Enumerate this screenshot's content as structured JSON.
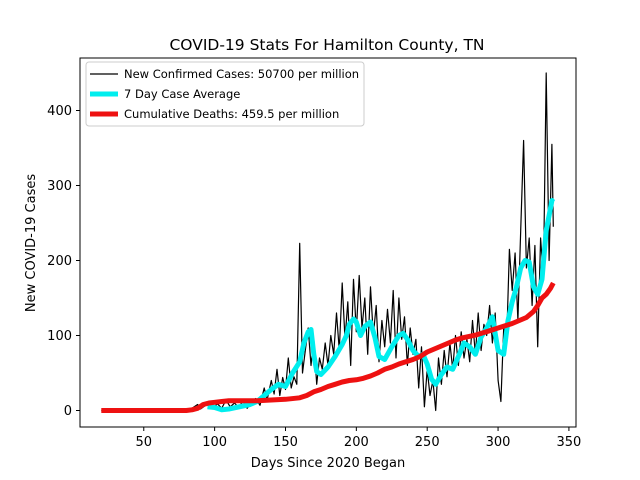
{
  "chart_data": {
    "type": "line",
    "title": "COVID-19 Stats For Hamilton County, TN",
    "xlabel": "Days Since 2020 Began",
    "ylabel": "New COVID-19 Cases",
    "xlim": [
      5,
      355
    ],
    "ylim": [
      -22,
      470
    ],
    "xticks": [
      50,
      100,
      150,
      200,
      250,
      300,
      350
    ],
    "yticks": [
      0,
      100,
      200,
      300,
      400
    ],
    "grid": false,
    "legend": "top-left",
    "series": [
      {
        "name": "New Confirmed Cases: 50700 per million",
        "color": "#000000",
        "points": [
          [
            20,
            0
          ],
          [
            80,
            0
          ],
          [
            84,
            3
          ],
          [
            88,
            8
          ],
          [
            90,
            2
          ],
          [
            93,
            6
          ],
          [
            96,
            12
          ],
          [
            99,
            4
          ],
          [
            102,
            9
          ],
          [
            105,
            3
          ],
          [
            108,
            14
          ],
          [
            111,
            5
          ],
          [
            114,
            10
          ],
          [
            117,
            4
          ],
          [
            120,
            13
          ],
          [
            123,
            3
          ],
          [
            126,
            11
          ],
          [
            129,
            16
          ],
          [
            132,
            7
          ],
          [
            135,
            30
          ],
          [
            137,
            14
          ],
          [
            140,
            40
          ],
          [
            142,
            22
          ],
          [
            144,
            55
          ],
          [
            146,
            20
          ],
          [
            148,
            44
          ],
          [
            150,
            28
          ],
          [
            152,
            70
          ],
          [
            154,
            30
          ],
          [
            156,
            45
          ],
          [
            158,
            35
          ],
          [
            160,
            223
          ],
          [
            162,
            50
          ],
          [
            164,
            80
          ],
          [
            166,
            110
          ],
          [
            168,
            60
          ],
          [
            170,
            95
          ],
          [
            172,
            35
          ],
          [
            174,
            70
          ],
          [
            176,
            55
          ],
          [
            178,
            90
          ],
          [
            180,
            60
          ],
          [
            182,
            100
          ],
          [
            184,
            75
          ],
          [
            186,
            130
          ],
          [
            188,
            80
          ],
          [
            190,
            170
          ],
          [
            192,
            95
          ],
          [
            194,
            145
          ],
          [
            196,
            60
          ],
          [
            198,
            175
          ],
          [
            200,
            105
          ],
          [
            202,
            180
          ],
          [
            204,
            110
          ],
          [
            206,
            150
          ],
          [
            208,
            75
          ],
          [
            210,
            165
          ],
          [
            212,
            100
          ],
          [
            214,
            140
          ],
          [
            216,
            65
          ],
          [
            218,
            120
          ],
          [
            220,
            85
          ],
          [
            222,
            135
          ],
          [
            224,
            90
          ],
          [
            226,
            160
          ],
          [
            228,
            70
          ],
          [
            230,
            150
          ],
          [
            232,
            95
          ],
          [
            234,
            125
          ],
          [
            236,
            60
          ],
          [
            238,
            110
          ],
          [
            240,
            75
          ],
          [
            242,
            95
          ],
          [
            244,
            30
          ],
          [
            246,
            85
          ],
          [
            248,
            5
          ],
          [
            250,
            55
          ],
          [
            252,
            20
          ],
          [
            254,
            40
          ],
          [
            256,
            0
          ],
          [
            258,
            70
          ],
          [
            260,
            35
          ],
          [
            262,
            80
          ],
          [
            264,
            45
          ],
          [
            266,
            90
          ],
          [
            268,
            55
          ],
          [
            270,
            100
          ],
          [
            272,
            60
          ],
          [
            274,
            105
          ],
          [
            276,
            70
          ],
          [
            278,
            95
          ],
          [
            280,
            65
          ],
          [
            282,
            120
          ],
          [
            284,
            75
          ],
          [
            286,
            130
          ],
          [
            288,
            80
          ],
          [
            290,
            115
          ],
          [
            292,
            100
          ],
          [
            294,
            140
          ],
          [
            296,
            90
          ],
          [
            298,
            130
          ],
          [
            300,
            40
          ],
          [
            302,
            12
          ],
          [
            304,
            110
          ],
          [
            306,
            90
          ],
          [
            308,
            215
          ],
          [
            310,
            160
          ],
          [
            312,
            210
          ],
          [
            314,
            120
          ],
          [
            316,
            240
          ],
          [
            318,
            360
          ],
          [
            320,
            190
          ],
          [
            322,
            230
          ],
          [
            324,
            140
          ],
          [
            326,
            220
          ],
          [
            328,
            85
          ],
          [
            330,
            230
          ],
          [
            332,
            175
          ],
          [
            334,
            450
          ],
          [
            336,
            200
          ],
          [
            338,
            355
          ],
          [
            339,
            245
          ]
        ]
      },
      {
        "name": "7 Day Case Average",
        "color": "#00eeee",
        "points": [
          [
            95,
            5
          ],
          [
            100,
            4
          ],
          [
            105,
            1
          ],
          [
            110,
            2
          ],
          [
            115,
            4
          ],
          [
            120,
            6
          ],
          [
            125,
            8
          ],
          [
            130,
            12
          ],
          [
            135,
            20
          ],
          [
            140,
            28
          ],
          [
            145,
            35
          ],
          [
            150,
            32
          ],
          [
            155,
            50
          ],
          [
            160,
            65
          ],
          [
            163,
            90
          ],
          [
            166,
            105
          ],
          [
            168,
            108
          ],
          [
            170,
            75
          ],
          [
            172,
            52
          ],
          [
            175,
            48
          ],
          [
            180,
            58
          ],
          [
            185,
            72
          ],
          [
            190,
            88
          ],
          [
            193,
            100
          ],
          [
            195,
            115
          ],
          [
            198,
            122
          ],
          [
            200,
            118
          ],
          [
            203,
            100
          ],
          [
            206,
            112
          ],
          [
            210,
            118
          ],
          [
            213,
            98
          ],
          [
            216,
            72
          ],
          [
            220,
            68
          ],
          [
            225,
            85
          ],
          [
            230,
            100
          ],
          [
            233,
            103
          ],
          [
            236,
            95
          ],
          [
            240,
            80
          ],
          [
            244,
            72
          ],
          [
            247,
            75
          ],
          [
            250,
            62
          ],
          [
            253,
            42
          ],
          [
            256,
            35
          ],
          [
            260,
            48
          ],
          [
            264,
            58
          ],
          [
            268,
            55
          ],
          [
            272,
            72
          ],
          [
            276,
            90
          ],
          [
            280,
            85
          ],
          [
            284,
            75
          ],
          [
            288,
            98
          ],
          [
            292,
            110
          ],
          [
            296,
            125
          ],
          [
            300,
            80
          ],
          [
            304,
            75
          ],
          [
            307,
            120
          ],
          [
            310,
            145
          ],
          [
            313,
            165
          ],
          [
            316,
            190
          ],
          [
            319,
            200
          ],
          [
            322,
            198
          ],
          [
            325,
            165
          ],
          [
            328,
            155
          ],
          [
            331,
            175
          ],
          [
            334,
            240
          ],
          [
            336,
            260
          ],
          [
            338,
            280
          ],
          [
            339,
            278
          ]
        ]
      },
      {
        "name": "Cumulative Deaths: 459.5 per million",
        "color": "#ee1111",
        "points": [
          [
            20,
            0
          ],
          [
            80,
            0
          ],
          [
            84,
            1
          ],
          [
            88,
            3
          ],
          [
            92,
            8
          ],
          [
            96,
            10
          ],
          [
            100,
            11
          ],
          [
            105,
            12
          ],
          [
            110,
            13
          ],
          [
            120,
            13
          ],
          [
            130,
            13
          ],
          [
            140,
            14
          ],
          [
            150,
            15
          ],
          [
            160,
            17
          ],
          [
            165,
            20
          ],
          [
            170,
            25
          ],
          [
            175,
            28
          ],
          [
            180,
            32
          ],
          [
            185,
            35
          ],
          [
            190,
            38
          ],
          [
            195,
            40
          ],
          [
            200,
            41
          ],
          [
            205,
            43
          ],
          [
            210,
            46
          ],
          [
            215,
            50
          ],
          [
            220,
            55
          ],
          [
            225,
            58
          ],
          [
            230,
            62
          ],
          [
            235,
            65
          ],
          [
            240,
            68
          ],
          [
            245,
            72
          ],
          [
            250,
            78
          ],
          [
            255,
            82
          ],
          [
            260,
            86
          ],
          [
            265,
            90
          ],
          [
            270,
            94
          ],
          [
            275,
            97
          ],
          [
            280,
            99
          ],
          [
            285,
            101
          ],
          [
            290,
            104
          ],
          [
            295,
            107
          ],
          [
            300,
            110
          ],
          [
            305,
            113
          ],
          [
            310,
            116
          ],
          [
            315,
            120
          ],
          [
            320,
            124
          ],
          [
            325,
            132
          ],
          [
            328,
            140
          ],
          [
            331,
            150
          ],
          [
            334,
            155
          ],
          [
            337,
            163
          ],
          [
            339,
            170
          ]
        ]
      }
    ]
  }
}
